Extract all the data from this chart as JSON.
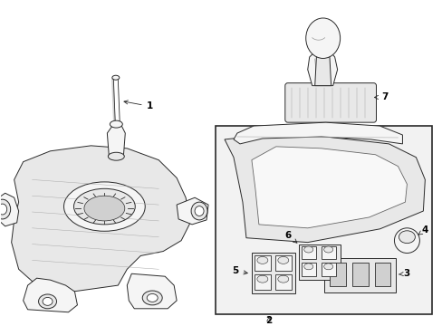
{
  "bg_color": "#ffffff",
  "line_color": "#2a2a2a",
  "label_color": "#000000",
  "fill_light": "#f5f5f5",
  "fill_mid": "#e8e8e8",
  "fill_dark": "#d0d0d0",
  "box_fill": "#eeeeee",
  "figsize": [
    4.89,
    3.6
  ],
  "dpi": 100,
  "label_fontsize": 7.5
}
